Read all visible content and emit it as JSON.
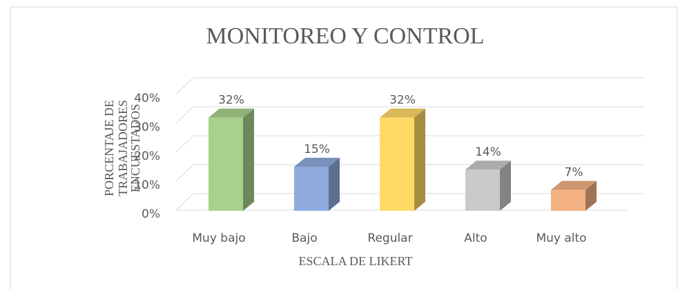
{
  "chart_data": {
    "type": "bar3d",
    "title": "MONITOREO Y CONTROL",
    "ylabel_lines": [
      "PORCENTAJE DE",
      "TRABAJADORES",
      "ENCUESTADOS"
    ],
    "xlabel": "ESCALA DE LIKERT",
    "categories": [
      "Muy bajo",
      "Bajo",
      "Regular",
      "Alto",
      "Muy alto"
    ],
    "values": [
      32,
      15,
      32,
      14,
      7
    ],
    "value_labels": [
      "32%",
      "15%",
      "32%",
      "14%",
      "7%"
    ],
    "colors": [
      "#a9d18e",
      "#8faadc",
      "#ffd966",
      "#c9c9c9",
      "#f4b183"
    ],
    "ylim": [
      0,
      40
    ],
    "yticks": [
      {
        "value": 0,
        "label": "0%"
      },
      {
        "value": 10,
        "label": "10%"
      },
      {
        "value": 20,
        "label": "20%"
      },
      {
        "value": 30,
        "label": "30%"
      },
      {
        "value": 40,
        "label": "40%"
      }
    ],
    "grid": true
  }
}
